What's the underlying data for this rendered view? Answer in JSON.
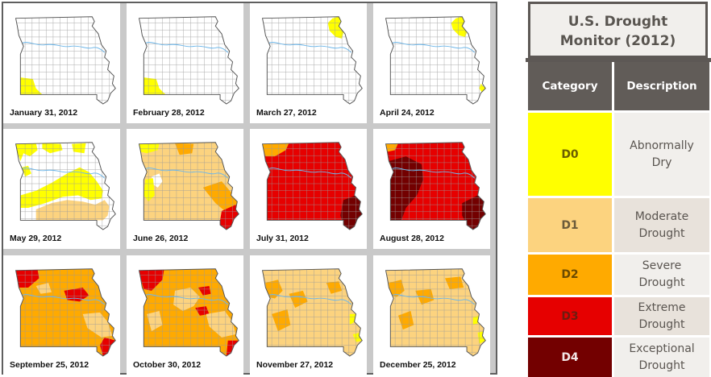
{
  "colors": {
    "none": "#ffffff",
    "D0": "#ffff00",
    "D1": "#fcd37f",
    "D2": "#ffaa00",
    "D3": "#e60000",
    "D4": "#730000",
    "county_lines": "#9a9a9a",
    "river": "#6fb7e9"
  },
  "maps": [
    {
      "date": "January 31, 2012",
      "coverage": [
        "D0 in far southwest corner"
      ]
    },
    {
      "date": "February 28, 2012",
      "coverage": [
        "D0 in far southwest corner"
      ]
    },
    {
      "date": "March 27, 2012",
      "coverage": [
        "D0 in northeast"
      ]
    },
    {
      "date": "April 24, 2012",
      "coverage": [
        "D0 in northeast",
        "D0 small area southeast"
      ]
    },
    {
      "date": "May 29, 2012",
      "coverage": [
        "D0 scattered north",
        "D0 band west to southeast",
        "D1 south-central"
      ]
    },
    {
      "date": "June 26, 2012",
      "coverage": [
        "D1 most of state",
        "D2 northwest and southeast",
        "D3 bootheel"
      ]
    },
    {
      "date": "July 31, 2012",
      "coverage": [
        "D3 most of state",
        "D2 northwest corner",
        "D4 southeast"
      ]
    },
    {
      "date": "August 28, 2012",
      "coverage": [
        "D3 most of state",
        "D4 west and southeast"
      ]
    },
    {
      "date": "September 25, 2012",
      "coverage": [
        "D2 most of state",
        "D3 northwest and central",
        "D1 southeast"
      ]
    },
    {
      "date": "October 30, 2012",
      "coverage": [
        "D2 and D1 mixed",
        "D3 northwest",
        "D3 small spots"
      ]
    },
    {
      "date": "November 27, 2012",
      "coverage": [
        "D1 most of state",
        "D2 patches",
        "D0 east edge"
      ]
    },
    {
      "date": "December 25, 2012",
      "coverage": [
        "D1 most of state",
        "D2 patches",
        "D0 east edge"
      ]
    }
  ],
  "legend": {
    "title_line1": "U.S. Drought",
    "title_line2": "Monitor (2012)",
    "header_category": "Category",
    "header_description": "Description",
    "rows": [
      {
        "code": "D0",
        "desc1": "Abnormally",
        "desc2": "Dry",
        "color": "#ffff00",
        "text_color": "#6b5d00",
        "desc_bg": "#f1efec"
      },
      {
        "code": "D1",
        "desc1": "Moderate",
        "desc2": "Drought",
        "color": "#fcd37f",
        "text_color": "#6b5b3a",
        "desc_bg": "#e8e2db"
      },
      {
        "code": "D2",
        "desc1": "Severe",
        "desc2": "Drought",
        "color": "#ffaa00",
        "text_color": "#6b4a00",
        "desc_bg": "#f1efec"
      },
      {
        "code": "D3",
        "desc1": "Extreme",
        "desc2": "Drought",
        "color": "#e60000",
        "text_color": "#6e1c10",
        "desc_bg": "#e8e2db"
      },
      {
        "code": "D4",
        "desc1": "Exceptional",
        "desc2": "Drought",
        "color": "#730000",
        "text_color": "#f2e6e6",
        "desc_bg": "#f1efec"
      }
    ]
  }
}
